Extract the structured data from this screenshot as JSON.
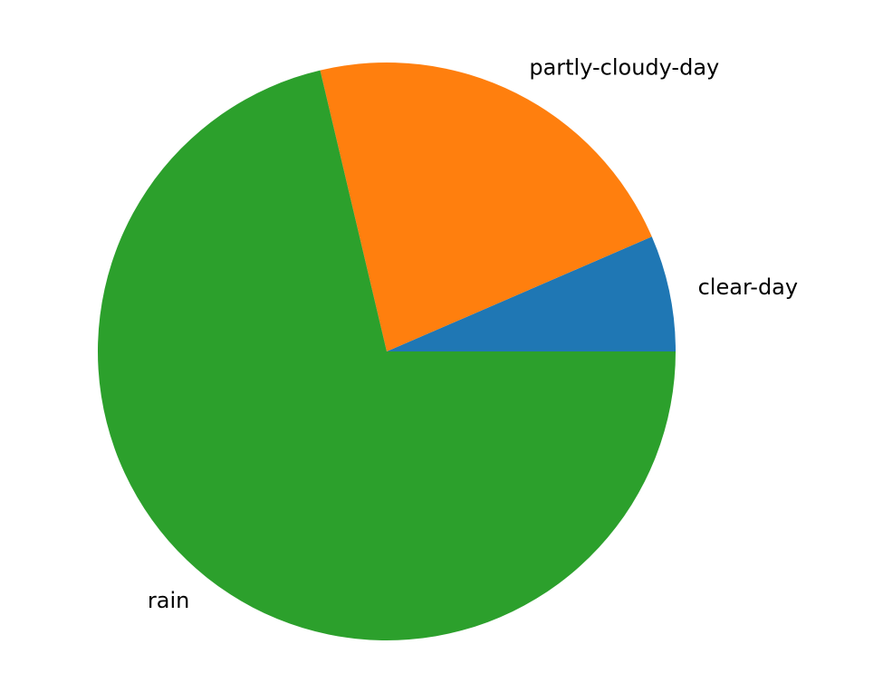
{
  "chart_data": {
    "type": "pie",
    "title": "",
    "labels": [
      "clear-day",
      "partly-cloudy-day",
      "rain"
    ],
    "values": [
      6.5,
      22.2,
      71.3
    ],
    "colors": [
      "#1f77b4",
      "#ff7f0e",
      "#2ca02c"
    ],
    "start_angle_deg": 0,
    "direction": "counterclockwise",
    "legend": "none"
  }
}
